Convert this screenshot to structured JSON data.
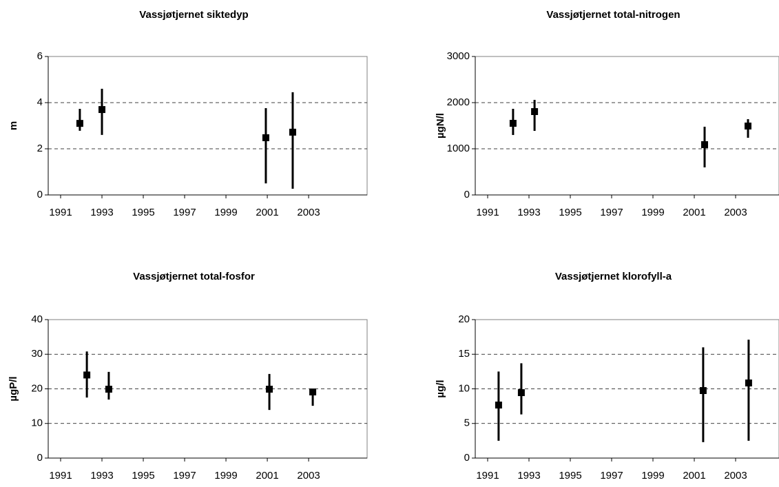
{
  "chart_data": [
    {
      "type": "errorbar",
      "title": "Vassjøtjernet siktedyp",
      "y_label": "m",
      "x": [
        1991.93,
        1993.0,
        2000.93,
        2002.23
      ],
      "values": [
        3.1,
        3.7,
        2.48,
        2.72
      ],
      "low": [
        2.78,
        2.6,
        0.5,
        0.27
      ],
      "high": [
        3.73,
        4.6,
        3.76,
        4.45
      ],
      "color": "#000000",
      "xlim": [
        1990.4,
        2005.83
      ],
      "xticks": [
        1991,
        1993,
        1995,
        1997,
        1999,
        2001,
        2003
      ],
      "ylim": [
        0,
        6
      ],
      "yticks": [
        0,
        2,
        4,
        6
      ],
      "grid": true
    },
    {
      "type": "errorbar",
      "title": "Vassjøtjernet total-nitrogen",
      "y_label": "µgN/l",
      "x": [
        1992.23,
        1993.27,
        2001.5,
        2003.6
      ],
      "values": [
        1552,
        1806,
        1090,
        1493
      ],
      "low": [
        1299,
        1388,
        597,
        1239
      ],
      "high": [
        1866,
        2060,
        1478,
        1642
      ],
      "color": "#000000",
      "xlim": [
        1990.4,
        2005.1
      ],
      "xticks": [
        1991,
        1993,
        1995,
        1997,
        1999,
        2001,
        2003
      ],
      "ylim": [
        0,
        3000
      ],
      "yticks": [
        0,
        1000,
        2000,
        3000
      ],
      "grid": true
    },
    {
      "type": "errorbar",
      "title": "Vassjøtjernet total-fosfor",
      "y_label": "µgP/l",
      "x": [
        1992.27,
        1993.33,
        2001.1,
        2003.2
      ],
      "values": [
        24,
        19.9,
        19.9,
        19.1
      ],
      "low": [
        17.5,
        16.9,
        13.9,
        15.1
      ],
      "high": [
        30.8,
        24.9,
        24.3,
        19.9
      ],
      "color": "#000000",
      "xlim": [
        1990.4,
        2005.83
      ],
      "xticks": [
        1991,
        1993,
        1995,
        1997,
        1999,
        2001,
        2003
      ],
      "ylim": [
        0,
        40
      ],
      "yticks": [
        0,
        10,
        20,
        30,
        40
      ],
      "grid": true
    },
    {
      "type": "errorbar",
      "title": "Vassjøtjernet klorofyll-a",
      "y_label": "µg/l",
      "x": [
        1991.53,
        1992.63,
        2001.43,
        2003.63
      ],
      "values": [
        7.66,
        9.45,
        9.75,
        10.85
      ],
      "low": [
        2.5,
        6.3,
        2.3,
        2.5
      ],
      "high": [
        12.5,
        13.7,
        16,
        17.1
      ],
      "color": "#000000",
      "xlim": [
        1990.4,
        2005.1
      ],
      "xticks": [
        1991,
        1993,
        1995,
        1997,
        1999,
        2001,
        2003
      ],
      "ylim": [
        0,
        20
      ],
      "yticks": [
        0,
        5,
        10,
        15,
        20
      ],
      "grid": true
    }
  ]
}
